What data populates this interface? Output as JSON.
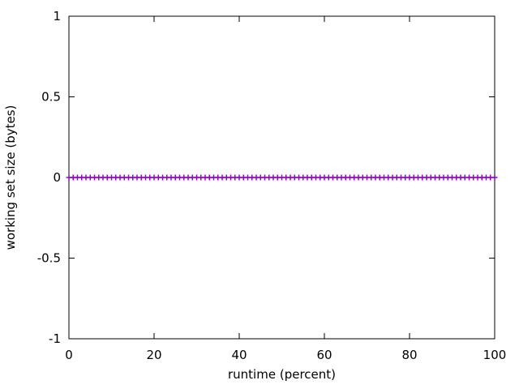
{
  "figure": {
    "background": "#ffffff",
    "axis_color": "#000000",
    "text_color": "#000000"
  },
  "chart_data": {
    "type": "line",
    "style": "linespoints",
    "title": "",
    "xlabel": "runtime (percent)",
    "ylabel": "working set size (bytes)",
    "xlim": [
      0,
      100
    ],
    "ylim": [
      -1,
      1
    ],
    "xticks": [
      0,
      20,
      40,
      60,
      80,
      100
    ],
    "xtick_labels": [
      "0",
      "20",
      "40",
      "60",
      "80",
      "100"
    ],
    "yticks": [
      -1,
      -0.5,
      0,
      0.5,
      1
    ],
    "ytick_labels": [
      "-1",
      "-0.5",
      "0",
      "0.5",
      "1"
    ],
    "grid": false,
    "legend": "none",
    "ticks_mirrored": true,
    "series": [
      {
        "color": "#9400d3",
        "marker": "plus",
        "x": [
          0,
          1,
          2,
          3,
          4,
          5,
          6,
          7,
          8,
          9,
          10,
          11,
          12,
          13,
          14,
          15,
          16,
          17,
          18,
          19,
          20,
          21,
          22,
          23,
          24,
          25,
          26,
          27,
          28,
          29,
          30,
          31,
          32,
          33,
          34,
          35,
          36,
          37,
          38,
          39,
          40,
          41,
          42,
          43,
          44,
          45,
          46,
          47,
          48,
          49,
          50,
          51,
          52,
          53,
          54,
          55,
          56,
          57,
          58,
          59,
          60,
          61,
          62,
          63,
          64,
          65,
          66,
          67,
          68,
          69,
          70,
          71,
          72,
          73,
          74,
          75,
          76,
          77,
          78,
          79,
          80,
          81,
          82,
          83,
          84,
          85,
          86,
          87,
          88,
          89,
          90,
          91,
          92,
          93,
          94,
          95,
          96,
          97,
          98,
          99,
          100
        ],
        "y": [
          0,
          0,
          0,
          0,
          0,
          0,
          0,
          0,
          0,
          0,
          0,
          0,
          0,
          0,
          0,
          0,
          0,
          0,
          0,
          0,
          0,
          0,
          0,
          0,
          0,
          0,
          0,
          0,
          0,
          0,
          0,
          0,
          0,
          0,
          0,
          0,
          0,
          0,
          0,
          0,
          0,
          0,
          0,
          0,
          0,
          0,
          0,
          0,
          0,
          0,
          0,
          0,
          0,
          0,
          0,
          0,
          0,
          0,
          0,
          0,
          0,
          0,
          0,
          0,
          0,
          0,
          0,
          0,
          0,
          0,
          0,
          0,
          0,
          0,
          0,
          0,
          0,
          0,
          0,
          0,
          0,
          0,
          0,
          0,
          0,
          0,
          0,
          0,
          0,
          0,
          0,
          0,
          0,
          0,
          0,
          0,
          0,
          0,
          0,
          0,
          0
        ]
      }
    ]
  }
}
